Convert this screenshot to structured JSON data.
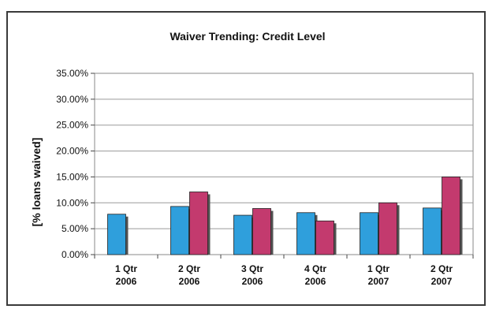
{
  "chart_data": {
    "type": "bar",
    "title": "Waiver Trending: Credit Level",
    "xlabel": "",
    "ylabel": "[% loans waived]",
    "ylim": [
      0,
      0.35
    ],
    "yticks": [
      "0.00%",
      "5.00%",
      "10.00%",
      "15.00%",
      "20.00%",
      "25.00%",
      "30.00%",
      "35.00%"
    ],
    "categories": [
      [
        "1 Qtr",
        "2006"
      ],
      [
        "2 Qtr",
        "2006"
      ],
      [
        "3 Qtr",
        "2006"
      ],
      [
        "4 Qtr",
        "2006"
      ],
      [
        "1 Qtr",
        "2007"
      ],
      [
        "2 Qtr",
        "2007"
      ]
    ],
    "series": [
      {
        "color": "#2f9fdc",
        "values": [
          0.078,
          0.093,
          0.076,
          0.081,
          0.081,
          0.09
        ]
      },
      {
        "color": "#c33a6e",
        "values": [
          null,
          0.121,
          0.089,
          0.065,
          0.1,
          0.15
        ]
      }
    ],
    "grid": true,
    "legend": "none"
  }
}
